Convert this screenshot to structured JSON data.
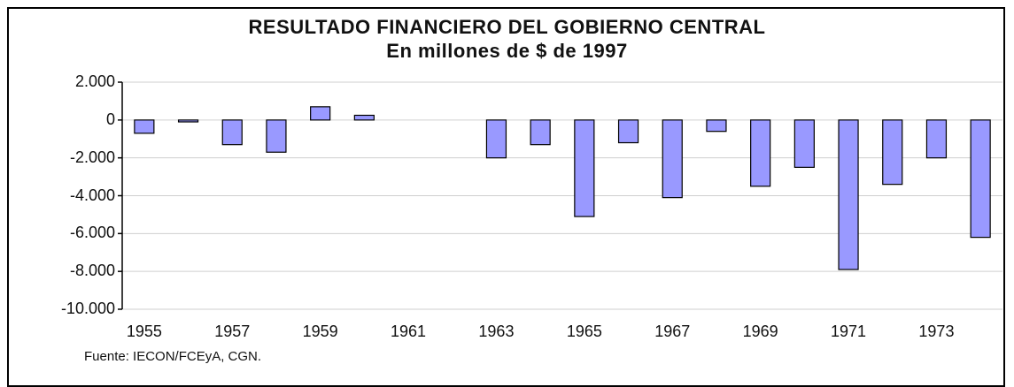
{
  "chart_data": {
    "type": "bar",
    "title": "RESULTADO FINANCIERO DEL GOBIERNO CENTRAL",
    "subtitle": "En millones de $ de 1997",
    "categories": [
      "1955",
      "1956",
      "1957",
      "1958",
      "1959",
      "1960",
      "1961",
      "1962",
      "1963",
      "1964",
      "1965",
      "1966",
      "1967",
      "1968",
      "1969",
      "1970",
      "1971",
      "1972",
      "1973",
      "1974"
    ],
    "values": [
      -700,
      -100,
      -1300,
      -1700,
      700,
      250,
      0,
      0,
      -2000,
      -1300,
      -5100,
      -1200,
      -4100,
      -600,
      -3500,
      -2500,
      -7900,
      -3400,
      -2000,
      -6200
    ],
    "ylim": [
      -10000,
      2000
    ],
    "yticks": [
      "2.000",
      "0",
      "-2.000",
      "-4.000",
      "-6.000",
      "-8.000",
      "-10.000"
    ],
    "ytick_values": [
      2000,
      0,
      -2000,
      -4000,
      -6000,
      -8000,
      -10000
    ],
    "xtick_labels": [
      "1955",
      "1957",
      "1959",
      "1961",
      "1963",
      "1965",
      "1967",
      "1969",
      "1971",
      "1973"
    ],
    "grid": true,
    "bar_color": "#9999ff",
    "source": "Fuente: IECON/FCEyA, CGN."
  }
}
